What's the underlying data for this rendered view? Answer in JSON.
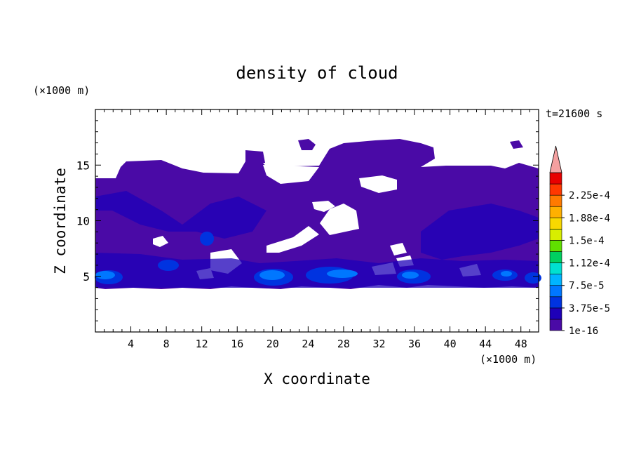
{
  "chart_data": {
    "type": "heatmap",
    "title": "density of cloud",
    "xlabel": "X coordinate",
    "ylabel": "Z coordinate",
    "x_unit": "(×1000 m)",
    "y_unit": "(×1000 m)",
    "time_label": "t=21600 s",
    "xlim": [
      0,
      50
    ],
    "ylim": [
      0,
      20
    ],
    "x_ticks": [
      4,
      8,
      12,
      16,
      20,
      24,
      28,
      32,
      36,
      40,
      44,
      48
    ],
    "y_ticks": [
      5,
      10,
      15
    ],
    "colorbar": {
      "labels": [
        "1e-16",
        "3.75e-5",
        "7.5e-5",
        "1.12e-4",
        "1.5e-4",
        "1.88e-4",
        "2.25e-4"
      ],
      "colors": [
        "#4a0aa6",
        "#1e00b8",
        "#0033e0",
        "#0077ff",
        "#00b4ff",
        "#00e0d0",
        "#00d060",
        "#60e000",
        "#d8ee00",
        "#f8d800",
        "#ffb000",
        "#ff7a00",
        "#ff3800",
        "#e80000",
        "#f4a0a0"
      ],
      "extend_max": true
    },
    "regions": [
      {
        "level": "1e-16",
        "x_range": [
          0,
          50
        ],
        "z_range": [
          4.0,
          17.5
        ],
        "note": "main cloud layer"
      },
      {
        "level": "7.5e-5",
        "x_range": [
          18,
          21
        ],
        "z_range": [
          4.3,
          5.6
        ]
      },
      {
        "level": "7.5e-5",
        "x_range": [
          26,
          30
        ],
        "z_range": [
          4.3,
          5.8
        ]
      },
      {
        "level": "3.75e-5",
        "x_range": [
          0,
          4
        ],
        "z_range": [
          4.2,
          6.0
        ]
      }
    ]
  }
}
